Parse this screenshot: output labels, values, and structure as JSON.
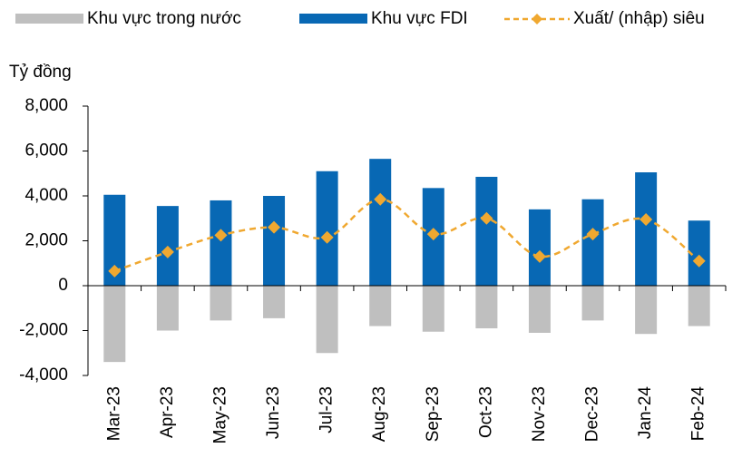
{
  "chart_data": {
    "type": "bar_line",
    "y_label": "Tỷ đồng",
    "categories": [
      "Mar-23",
      "Apr-23",
      "May-23",
      "Jun-23",
      "Jul-23",
      "Aug-23",
      "Sep-23",
      "Oct-23",
      "Nov-23",
      "Dec-23",
      "Jan-24",
      "Feb-24"
    ],
    "series": [
      {
        "name": "Khu vực trong nước",
        "type": "bar",
        "color": "#bfbfbf",
        "values": [
          -3400,
          -2000,
          -1550,
          -1450,
          -3000,
          -1800,
          -2050,
          -1900,
          -2100,
          -1550,
          -2150,
          -1800
        ]
      },
      {
        "name": "Khu vực FDI",
        "type": "bar",
        "color": "#0868b4",
        "values": [
          4050,
          3550,
          3800,
          4000,
          5100,
          5650,
          4350,
          4850,
          3400,
          3850,
          5050,
          2900
        ]
      },
      {
        "name": "Xuất/ (nhập) siêu",
        "type": "line",
        "color": "#f0a830",
        "values": [
          650,
          1500,
          2250,
          2600,
          2150,
          3850,
          2300,
          3000,
          1300,
          2300,
          2950,
          1100
        ]
      }
    ],
    "ylim": [
      -4000,
      8000
    ],
    "yticks": [
      {
        "value": -4000,
        "label": "-4,000"
      },
      {
        "value": -2000,
        "label": "-2,000"
      },
      0,
      {
        "value": 2000,
        "label": "2,000"
      },
      {
        "value": 4000,
        "label": "4,000"
      },
      {
        "value": 6000,
        "label": "6,000"
      },
      {
        "value": 8000,
        "label": "8,000"
      }
    ],
    "legend": "top"
  }
}
